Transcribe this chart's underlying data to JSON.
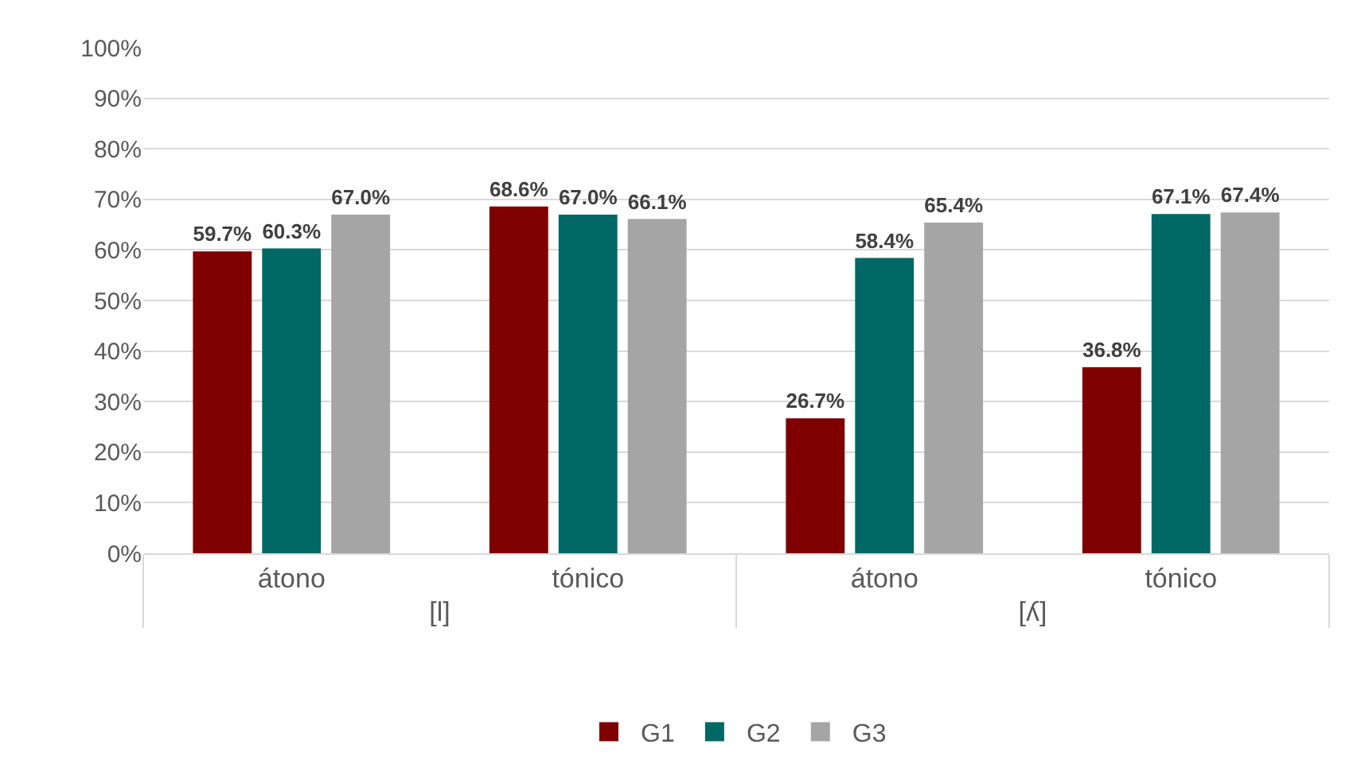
{
  "chart_data": {
    "type": "bar",
    "categories": [
      "átono",
      "tónico",
      "átono",
      "tónico"
    ],
    "annotations": [
      "[l]",
      "[ʎ]"
    ],
    "series": [
      {
        "name": "G1",
        "color": "#7f0000",
        "values": [
          59.7,
          68.6,
          26.7,
          36.8
        ],
        "value_labels": [
          "59.7%",
          "68.6%",
          "26.7%",
          "36.8%"
        ]
      },
      {
        "name": "G2",
        "color": "#006864",
        "values": [
          60.3,
          67.0,
          58.4,
          67.1
        ],
        "value_labels": [
          "60.3%",
          "67.0%",
          "58.4%",
          "67.1%"
        ]
      },
      {
        "name": "G3",
        "color": "#a5a5a5",
        "values": [
          67.0,
          66.1,
          65.4,
          67.4
        ],
        "value_labels": [
          "67.0%",
          "66.1%",
          "65.4%",
          "67.4%"
        ]
      }
    ],
    "ylim": [
      0,
      100
    ],
    "yticks": [
      {
        "value": 0,
        "label": "0%"
      },
      {
        "value": 10,
        "label": "10%"
      },
      {
        "value": 20,
        "label": "20%"
      },
      {
        "value": 30,
        "label": "30%"
      },
      {
        "value": 40,
        "label": "40%"
      },
      {
        "value": 50,
        "label": "50%"
      },
      {
        "value": 60,
        "label": "60%"
      },
      {
        "value": 70,
        "label": "70%"
      },
      {
        "value": 80,
        "label": "80%"
      },
      {
        "value": 90,
        "label": "90%"
      },
      {
        "value": 100,
        "label": "100%"
      }
    ],
    "grid": "y",
    "legend": "bottom"
  }
}
